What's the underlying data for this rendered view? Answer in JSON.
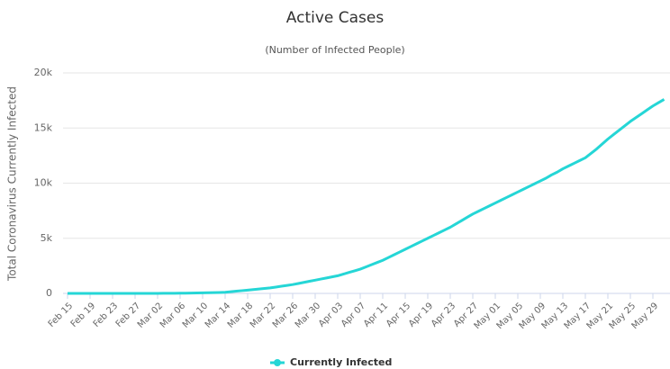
{
  "chart_data": {
    "type": "line",
    "title": "Active Cases",
    "subtitle": "(Number of Infected People)",
    "y_axis_label": "Total Coronavirus Currently Infected",
    "categories": [
      "Feb 15",
      null,
      null,
      null,
      "Feb 19",
      null,
      null,
      null,
      "Feb 23",
      null,
      null,
      null,
      "Feb 27",
      null,
      null,
      null,
      "Mar 02",
      null,
      null,
      null,
      "Mar 06",
      null,
      null,
      null,
      "Mar 10",
      null,
      null,
      null,
      "Mar 14",
      null,
      null,
      null,
      "Mar 18",
      null,
      null,
      null,
      "Mar 22",
      null,
      null,
      null,
      "Mar 26",
      null,
      null,
      null,
      "Mar 30",
      null,
      null,
      null,
      "Apr 03",
      null,
      null,
      null,
      "Apr 07",
      null,
      null,
      null,
      "Apr 11",
      null,
      null,
      null,
      "Apr 15",
      null,
      null,
      null,
      "Apr 19",
      null,
      null,
      null,
      "Apr 23",
      null,
      null,
      null,
      "Apr 27",
      null,
      null,
      null,
      "May 01",
      null,
      null,
      null,
      "May 05",
      null,
      null,
      null,
      "May 09",
      null,
      null,
      null,
      "May 13",
      null,
      null,
      null,
      "May 17",
      null,
      null,
      null,
      "May 21",
      null,
      null,
      null,
      "May 25",
      null,
      null,
      null,
      "May 29",
      null,
      null
    ],
    "series": [
      {
        "name": "Currently Infected",
        "color": "#25d6d6",
        "values": [
          0,
          0,
          0,
          0,
          0,
          0,
          0,
          0,
          0,
          0,
          0,
          0,
          0,
          0,
          0,
          5,
          5,
          10,
          10,
          15,
          20,
          25,
          30,
          40,
          50,
          60,
          70,
          85,
          100,
          150,
          200,
          250,
          300,
          350,
          400,
          450,
          500,
          575,
          650,
          725,
          800,
          900,
          1000,
          1100,
          1200,
          1300,
          1400,
          1500,
          1600,
          1750,
          1900,
          2050,
          2200,
          2400,
          2600,
          2800,
          3000,
          3250,
          3500,
          3750,
          4000,
          4250,
          4500,
          4750,
          5000,
          5250,
          5500,
          5750,
          6000,
          6300,
          6600,
          6900,
          7200,
          7450,
          7700,
          7950,
          8200,
          8450,
          8700,
          8950,
          9200,
          9450,
          9700,
          9950,
          10200,
          10450,
          10750,
          11000,
          11300,
          11550,
          11800,
          12050,
          12300,
          12700,
          13100,
          13550,
          14000,
          14400,
          14800,
          15200,
          15600,
          15950,
          16300,
          16650,
          17000,
          17300,
          17600
        ]
      }
    ],
    "ylim": [
      0,
      20000
    ],
    "yticks": [
      0,
      {
        "value": 5000,
        "label": "5k"
      },
      {
        "value": 10000,
        "label": "10k"
      },
      {
        "value": 15000,
        "label": "15k"
      },
      {
        "value": 20000,
        "label": "20k"
      }
    ],
    "grid": true
  }
}
